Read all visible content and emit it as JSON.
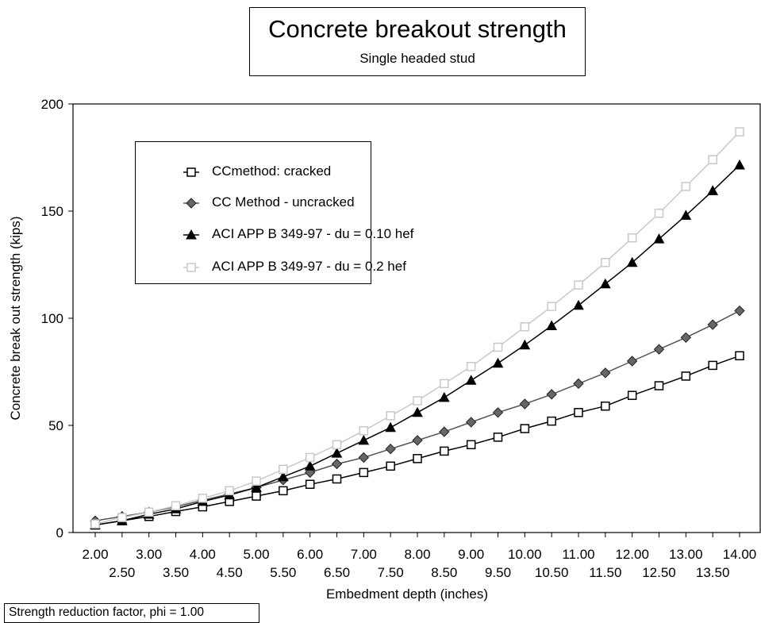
{
  "chart_data": {
    "type": "line",
    "title": "Concrete breakout strength",
    "subtitle": "Single headed stud",
    "xlabel": "Embedment depth (inches)",
    "ylabel": "Concrete break out strength (kips)",
    "ylim": [
      0,
      200
    ],
    "yticks": [
      "0",
      "50",
      "100",
      "150",
      "200"
    ],
    "xlim": [
      2,
      14
    ],
    "xticks_row1": [
      "2.00",
      "3.00",
      "4.00",
      "5.00",
      "6.00",
      "7.00",
      "8.00",
      "9.00",
      "10.00",
      "11.00",
      "12.00",
      "13.00",
      "14.00"
    ],
    "xticks_row2": [
      "2.50",
      "3.50",
      "4.50",
      "5.50",
      "6.50",
      "7.50",
      "8.50",
      "9.50",
      "10.50",
      "11.50",
      "12.50",
      "13.50"
    ],
    "x": [
      2.0,
      2.5,
      3.0,
      3.5,
      4.0,
      4.5,
      5.0,
      5.5,
      6.0,
      6.5,
      7.0,
      7.5,
      8.0,
      8.5,
      9.0,
      9.5,
      10.0,
      10.5,
      11.0,
      11.5,
      12.0,
      12.5,
      13.0,
      13.5,
      14.0
    ],
    "series": [
      {
        "name": "CCmethod: cracked",
        "marker": "square-open",
        "color": "#000000",
        "values": [
          3.5,
          5.5,
          7.5,
          9.8,
          12,
          14.5,
          17,
          19.5,
          22.5,
          25,
          28,
          31,
          34.5,
          38,
          41,
          44.5,
          48.5,
          52,
          56,
          59,
          64,
          68.5,
          73,
          78,
          82.5
        ]
      },
      {
        "name": "CC Method - uncracked",
        "marker": "diamond",
        "color": "#555555",
        "values": [
          5.5,
          7.5,
          9.5,
          12,
          15,
          18,
          21,
          24.5,
          28,
          32,
          35,
          39,
          43,
          47,
          51.5,
          56,
          60,
          64.5,
          69.5,
          74.5,
          80,
          85.5,
          91,
          97,
          103.5
        ]
      },
      {
        "name": "ACI APP B 349-97 -  du = 0.10 hef",
        "marker": "triangle",
        "color": "#000000",
        "values": [
          3.5,
          5.5,
          8.5,
          11,
          14.5,
          17.5,
          21,
          26,
          31,
          37,
          43,
          49,
          56,
          63,
          71,
          79,
          87.5,
          96.5,
          106,
          116,
          126,
          137,
          148,
          159.5,
          171.5
        ]
      },
      {
        "name": "ACI APP B 349-97 - du = 0.2 hef",
        "marker": "square-light",
        "color": "#c8c8c8",
        "values": [
          4,
          7,
          9.5,
          12.5,
          16,
          19.5,
          24,
          29.5,
          35,
          41,
          47.5,
          54.5,
          61.5,
          69.5,
          77.5,
          86.5,
          96,
          105.5,
          115.5,
          126,
          137.5,
          149,
          161.5,
          174,
          187
        ]
      }
    ],
    "legend_position": "top-left",
    "grid": false
  },
  "footnote": "Strength reduction factor, phi = 1.00"
}
